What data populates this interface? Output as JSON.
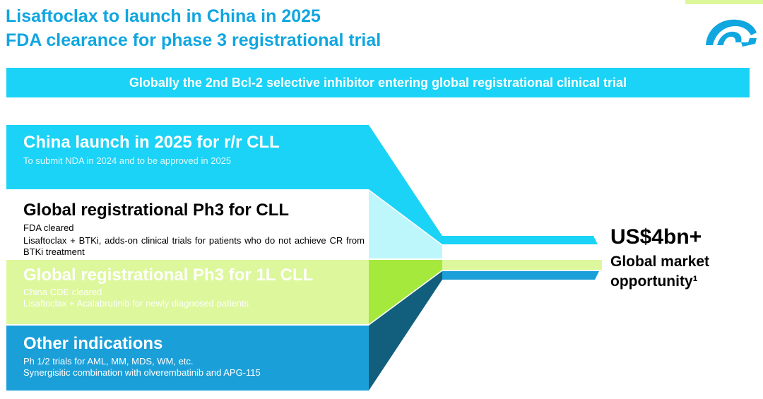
{
  "title": {
    "line1": "Lisaftoclax to launch in China in 2025",
    "line2": "FDA clearance for phase 3 registrational trial"
  },
  "banner": {
    "text": "Globally the 2nd Bcl-2 selective inhibitor entering global registrational clinical trial"
  },
  "blocks": [
    {
      "heading": "China launch in 2025 for r/r CLL",
      "lines": [
        "To submit NDA in 2024 and to be approved in 2025"
      ]
    },
    {
      "heading": "Global registrational Ph3 for CLL",
      "lines": [
        "FDA cleared",
        "Lisaftoclax + BTKi, adds-on clinical trials for patients who do not achieve CR from BTKi treatment"
      ]
    },
    {
      "heading": "Global registrational Ph3 for 1L CLL",
      "lines": [
        "China CDE cleared",
        "Lisaftoclax + Acalabrutinib for newly diagnosed patients"
      ]
    },
    {
      "heading": "Other indications",
      "lines": [
        "Ph 1/2 trials for AML, MM, MDS, WM, etc.",
        "Synergisitic combination with olverembatinib and APG-115"
      ]
    }
  ],
  "market": {
    "value": "US$4bn+",
    "label_line1": "Global market",
    "label_line2": "opportunity¹"
  },
  "colors": {
    "title": "#10a6e0",
    "cyan": "#1ad3f6",
    "light_cyan": "#bdf7fb",
    "lime": "#ddf79c",
    "blue": "#1b9fd8",
    "dark_blue": "#125e7d"
  },
  "icons": {
    "logo": "company-logo"
  }
}
